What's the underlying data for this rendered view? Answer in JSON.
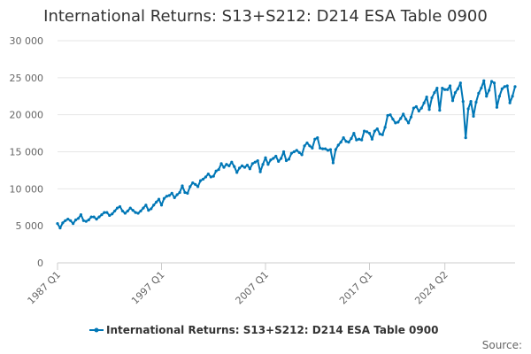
{
  "chart_data": {
    "type": "line",
    "title": "International Returns: S13+S212: D214 ESA Table 0900",
    "xlabel": "",
    "ylabel": "",
    "ylim": [
      0,
      30000
    ],
    "yticks": [
      0,
      5000,
      10000,
      15000,
      20000,
      25000,
      30000
    ],
    "ytick_labels": [
      "0",
      "5 000",
      "10 000",
      "15 000",
      "20 000",
      "25 000",
      "30 000"
    ],
    "xtick_labels": [
      "1987 Q1",
      "1997 Q1",
      "2007 Q1",
      "2017 Q1",
      "2024 Q2"
    ],
    "grid": true,
    "legend": "bottom",
    "color": "#0077b6",
    "source_label": "Source:",
    "series": [
      {
        "name": "International Returns: S13+S212: D214 ESA Table 0900",
        "start": "1987 Q1",
        "frequency": "quarterly",
        "values": [
          5300,
          4700,
          5400,
          5700,
          5900,
          5700,
          5300,
          5800,
          6000,
          6500,
          5700,
          5600,
          5800,
          6200,
          6200,
          5900,
          6200,
          6500,
          6800,
          6800,
          6400,
          6600,
          7000,
          7400,
          7600,
          7000,
          6700,
          7000,
          7400,
          7100,
          6800,
          6700,
          7000,
          7400,
          7800,
          7100,
          7300,
          7800,
          8200,
          8600,
          7800,
          8700,
          9000,
          9100,
          9400,
          8800,
          9200,
          9500,
          10400,
          9500,
          9400,
          10300,
          10800,
          10600,
          10300,
          11100,
          11300,
          11600,
          12000,
          11600,
          11700,
          12400,
          12600,
          13400,
          12900,
          13300,
          13100,
          13600,
          13000,
          12200,
          12800,
          13100,
          12900,
          13200,
          12700,
          13400,
          13600,
          13800,
          12300,
          13300,
          14200,
          13300,
          13900,
          14100,
          14400,
          13700,
          14100,
          15000,
          13800,
          14000,
          14800,
          15000,
          15200,
          14900,
          14600,
          15800,
          16200,
          15800,
          15500,
          16700,
          16900,
          15500,
          15400,
          15400,
          15200,
          15300,
          13500,
          15300,
          15900,
          16300,
          16900,
          16400,
          16300,
          16800,
          17500,
          16600,
          16700,
          16600,
          17800,
          17700,
          17500,
          16700,
          17800,
          18100,
          17400,
          17300,
          18300,
          19900,
          20000,
          19400,
          18900,
          19000,
          19500,
          20100,
          19400,
          18900,
          19700,
          20900,
          21100,
          20500,
          20900,
          21600,
          22400,
          20700,
          22300,
          23000,
          23600,
          20600,
          23600,
          23400,
          23400,
          23900,
          21900,
          23000,
          23500,
          24300,
          21800,
          16900,
          20800,
          21800,
          19800,
          21700,
          22900,
          23600,
          24600,
          22500,
          23300,
          24500,
          24300,
          21000,
          22500,
          23500,
          23800,
          23900,
          21600,
          22500,
          23800
        ]
      }
    ]
  }
}
